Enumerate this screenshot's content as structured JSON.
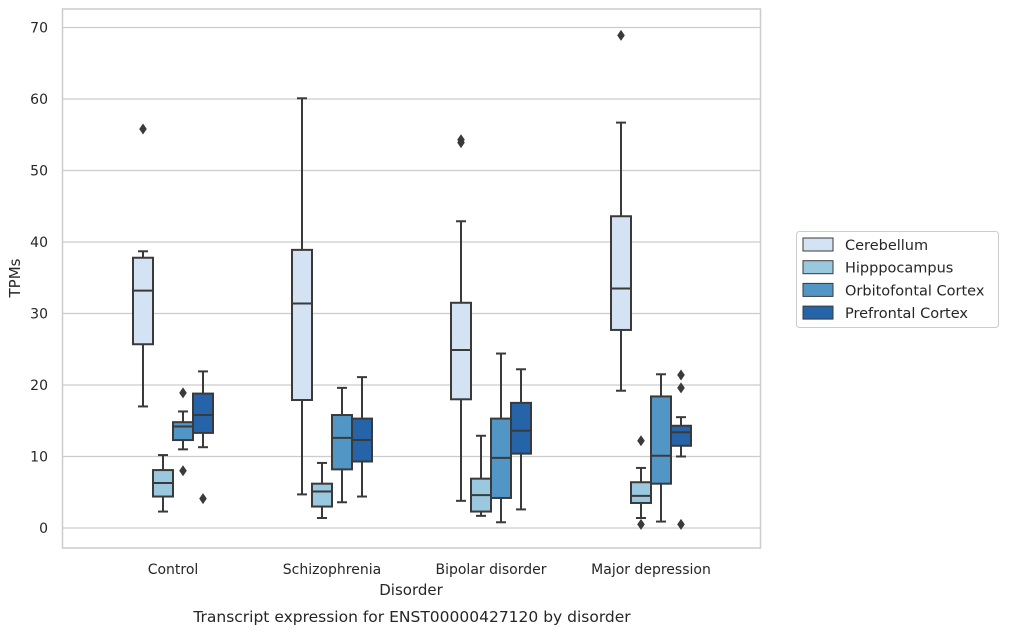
{
  "chart_data": {
    "type": "box",
    "title": "",
    "caption": "Transcript expression for ENST00000427120 by disorder",
    "xlabel": "Disorder",
    "ylabel": "TPMs",
    "ylim": [
      -3,
      72.5
    ],
    "yticks": [
      "0",
      "10",
      "20",
      "30",
      "40",
      "50",
      "60",
      "70"
    ],
    "grid": "horizontal",
    "legend_position": "right",
    "categories": [
      "Control",
      "Schizophrenia",
      "Bipolar disorder",
      "Major depression"
    ],
    "series": [
      {
        "name": "Cerebellum",
        "color": "#d4e3f3",
        "boxes": [
          {
            "whisker_low": 17.0,
            "q1": 25.7,
            "median": 33.2,
            "q3": 37.8,
            "whisker_high": 38.7,
            "outliers": [
              55.8
            ]
          },
          {
            "whisker_low": 4.7,
            "q1": 17.9,
            "median": 31.4,
            "q3": 38.9,
            "whisker_high": 60.1,
            "outliers": []
          },
          {
            "whisker_low": 3.8,
            "q1": 18.0,
            "median": 24.9,
            "q3": 31.5,
            "whisker_high": 42.9,
            "outliers": [
              53.9,
              54.3
            ]
          },
          {
            "whisker_low": 19.2,
            "q1": 27.7,
            "median": 33.5,
            "q3": 43.6,
            "whisker_high": 56.7,
            "outliers": [
              68.9
            ]
          }
        ]
      },
      {
        "name": "Hipppocampus",
        "color": "#9ac8df",
        "boxes": [
          {
            "whisker_low": 2.3,
            "q1": 4.4,
            "median": 6.3,
            "q3": 8.1,
            "whisker_high": 10.2,
            "outliers": []
          },
          {
            "whisker_low": 1.4,
            "q1": 3.0,
            "median": 5.1,
            "q3": 6.2,
            "whisker_high": 9.1,
            "outliers": []
          },
          {
            "whisker_low": 1.7,
            "q1": 2.3,
            "median": 4.6,
            "q3": 6.9,
            "whisker_high": 12.9,
            "outliers": []
          },
          {
            "whisker_low": 1.4,
            "q1": 3.5,
            "median": 4.5,
            "q3": 6.4,
            "whisker_high": 8.4,
            "outliers": [
              0.5,
              12.2
            ]
          }
        ]
      },
      {
        "name": "Orbitofontal Cortex",
        "color": "#5296c6",
        "boxes": [
          {
            "whisker_low": 11.0,
            "q1": 12.3,
            "median": 14.2,
            "q3": 14.8,
            "whisker_high": 16.3,
            "outliers": [
              8.0,
              18.9
            ]
          },
          {
            "whisker_low": 3.6,
            "q1": 8.2,
            "median": 12.6,
            "q3": 15.8,
            "whisker_high": 19.6,
            "outliers": []
          },
          {
            "whisker_low": 0.8,
            "q1": 4.2,
            "median": 9.8,
            "q3": 15.3,
            "whisker_high": 24.4,
            "outliers": []
          },
          {
            "whisker_low": 0.9,
            "q1": 6.2,
            "median": 10.1,
            "q3": 18.4,
            "whisker_high": 21.5,
            "outliers": []
          }
        ]
      },
      {
        "name": "Prefrontal Cortex",
        "color": "#2564a8",
        "boxes": [
          {
            "whisker_low": 11.3,
            "q1": 13.3,
            "median": 15.8,
            "q3": 18.8,
            "whisker_high": 21.9,
            "outliers": [
              4.1
            ]
          },
          {
            "whisker_low": 4.4,
            "q1": 9.3,
            "median": 12.3,
            "q3": 15.3,
            "whisker_high": 21.1,
            "outliers": []
          },
          {
            "whisker_low": 2.6,
            "q1": 10.4,
            "median": 13.6,
            "q3": 17.5,
            "whisker_high": 22.2,
            "outliers": []
          },
          {
            "whisker_low": 10.0,
            "q1": 11.5,
            "median": 13.4,
            "q3": 14.3,
            "whisker_high": 15.5,
            "outliers": [
              0.5,
              19.6,
              21.4
            ]
          }
        ]
      }
    ]
  }
}
